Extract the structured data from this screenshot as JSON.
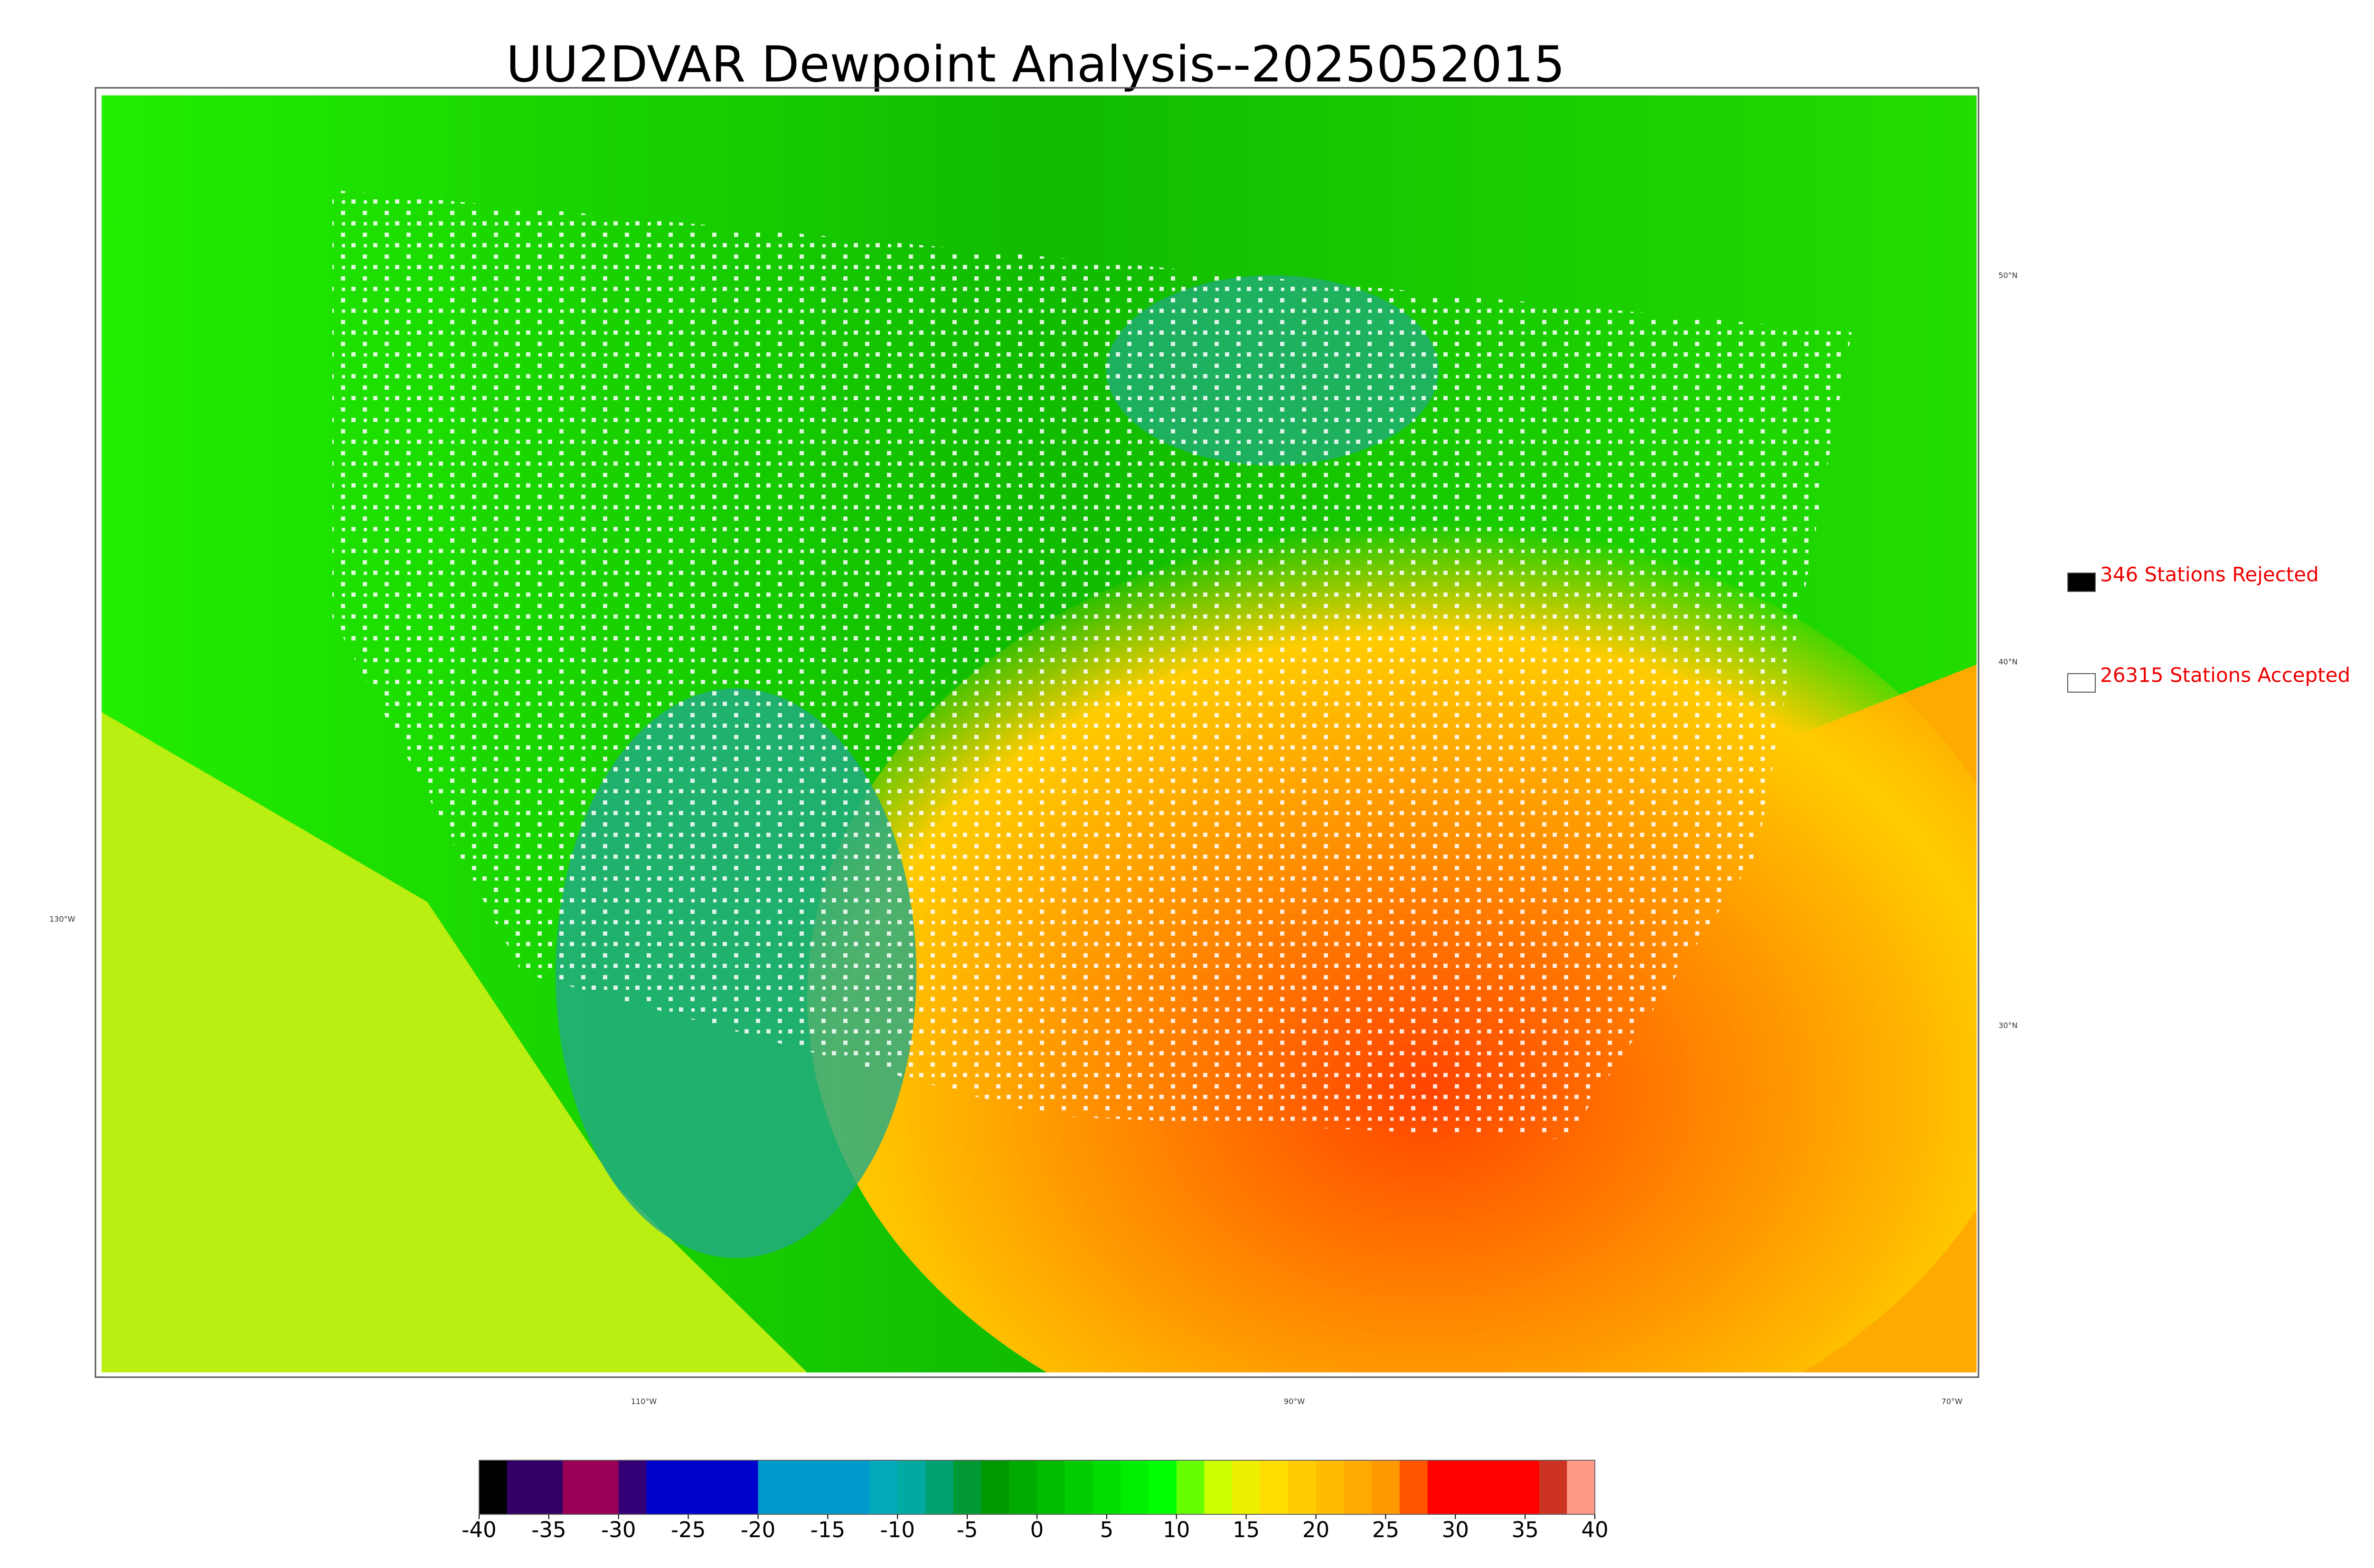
{
  "title": "UU2DVAR Dewpoint Analysis--2025052015",
  "legend": [
    {
      "label": "346 Stations Rejected",
      "color": "#000000"
    },
    {
      "label": "26315 Stations Accepted",
      "color": "#ffffff"
    }
  ],
  "latitude_labels": [
    "50°N",
    "40°N",
    "30°N"
  ],
  "longitude_labels": [
    "130°W",
    "110°W",
    "90°W",
    "70°W"
  ],
  "colorbar": {
    "lim": [
      -40,
      40
    ],
    "ticks": [
      -40,
      -35,
      -30,
      -25,
      -20,
      -15,
      -10,
      -5,
      0,
      5,
      10,
      15,
      20,
      25,
      30,
      35,
      40
    ],
    "colors": [
      "#000000",
      "#330066",
      "#330066",
      "#990055",
      "#990055",
      "#330077",
      "#0000cc",
      "#0000cc",
      "#0000cc",
      "#0000cc",
      "#0099cc",
      "#0099cc",
      "#0099cc",
      "#0099cc",
      "#00aab8",
      "#00aaa0",
      "#00a070",
      "#009933",
      "#009900",
      "#00aa00",
      "#00bb00",
      "#00cc00",
      "#00dd00",
      "#00ee00",
      "#00ff00",
      "#66ff00",
      "#ccff00",
      "#eeee00",
      "#ffdd00",
      "#ffcc00",
      "#ffbb00",
      "#ffaa00",
      "#ff9900",
      "#ff5500",
      "#ff0000",
      "#ff0000",
      "#ff0000",
      "#ff0000",
      "#cc3322",
      "#ff9988"
    ]
  }
}
